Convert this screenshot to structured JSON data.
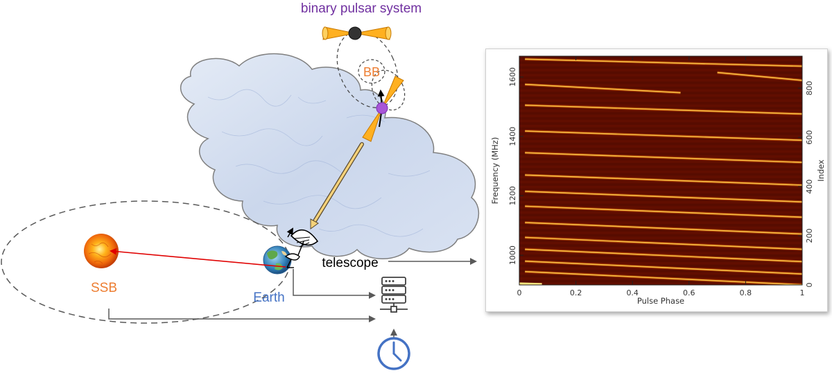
{
  "labels": {
    "system_title": "binary pulsar system",
    "bb": "BB",
    "ssb": "SSB",
    "earth": "Earth",
    "telescope": "telescope"
  },
  "colors": {
    "title_purple": "#7030A0",
    "orange_label": "#ED7D31",
    "earth_blue": "#4472C4",
    "clock_blue": "#4472C4",
    "signal_red": "#E00000",
    "beam_orange": "#FFB020",
    "pulsar_violet": "#A855D8",
    "companion_black": "#333333",
    "plot_background": "#5a0d00",
    "plot_trace": "#FFC84A"
  },
  "icons": [
    "sun-icon",
    "earth-icon",
    "radio-telescope-icon",
    "server-icon",
    "clock-icon",
    "pulsar-icon",
    "companion-star-icon",
    "interstellar-cloud"
  ],
  "chart_data": {
    "type": "heatmap",
    "title": "",
    "xlabel": "Pulse Phase",
    "ylabel": "Frequency (MHz)",
    "ylabel_right": "Index",
    "xlim": [
      0,
      1
    ],
    "ylim": [
      900,
      1670
    ],
    "ylim_right": [
      0,
      930
    ],
    "x_ticks": [
      "0",
      "0.2",
      "0.4",
      "0.6",
      "0.8",
      "1"
    ],
    "y_ticks": [
      "1000",
      "1200",
      "1400",
      "1600"
    ],
    "y_ticks_right": [
      "0",
      "200",
      "400",
      "600",
      "800"
    ],
    "colormap": "black-red-orange-yellow",
    "description_of_traces": "dispersed pulse tracks drifting to later phase at lower frequency",
    "trace_count": 14
  }
}
